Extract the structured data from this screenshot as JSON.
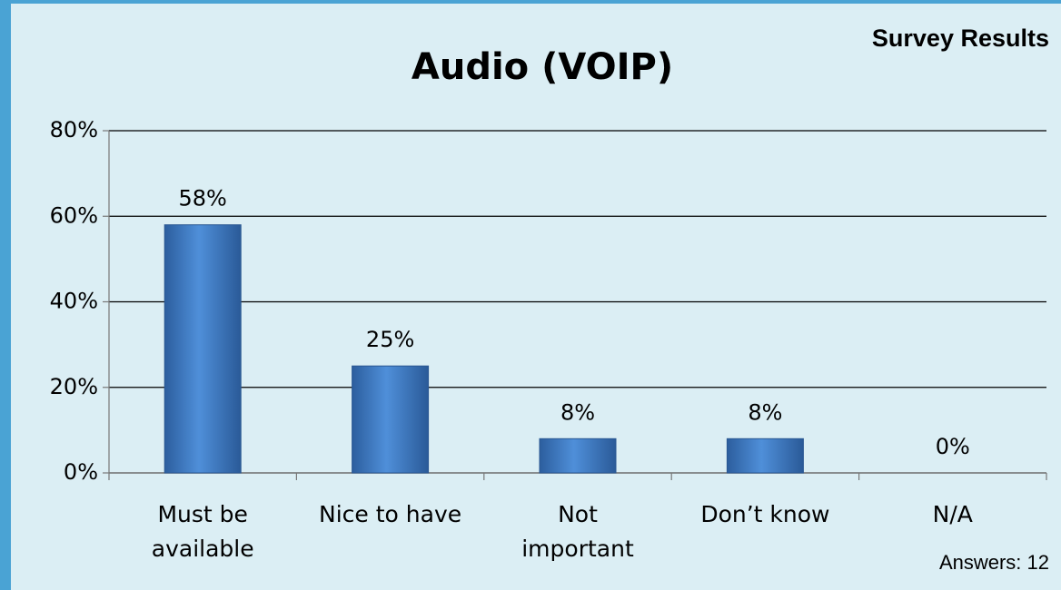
{
  "chart_data": {
    "type": "bar",
    "title": "Audio (VOIP)",
    "subtitle": "Survey Results",
    "annotation": "Answers: 12",
    "categories": [
      "Must be available",
      "Nice to have",
      "Not important",
      "Don’t know",
      "N/A"
    ],
    "values": [
      58,
      25,
      8,
      8,
      0
    ],
    "value_labels": [
      "58%",
      "25%",
      "8%",
      "8%",
      "0%"
    ],
    "color": "#3f7cc6",
    "ylim": [
      0,
      80
    ],
    "yticks": [
      {
        "value": 0,
        "label": "0%"
      },
      {
        "value": 20,
        "label": "20%"
      },
      {
        "value": 40,
        "label": "40%"
      },
      {
        "value": 60,
        "label": "60%"
      },
      {
        "value": 80,
        "label": "80%"
      }
    ],
    "grid": true
  }
}
